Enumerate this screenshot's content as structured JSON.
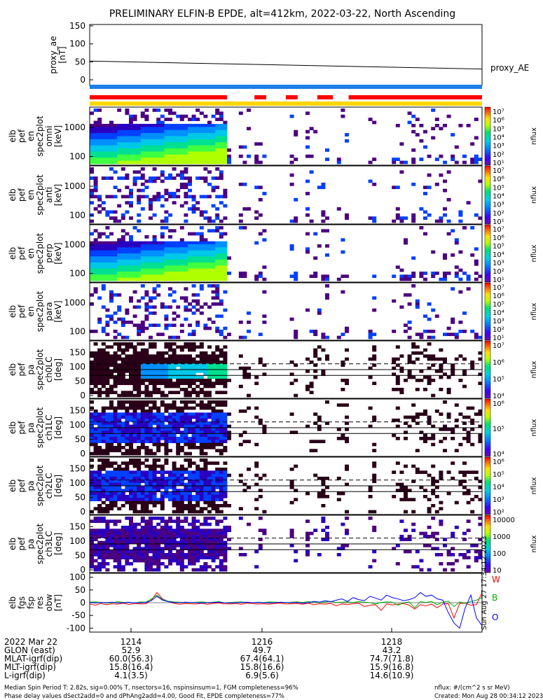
{
  "title": "PRELIMINARY ELFIN-B EPDE, alt=412km, 2022-03-22, North Ascending",
  "panels": [
    {
      "id": "proxy_ae",
      "ylabel": [
        "proxy_ae",
        "[nT]"
      ],
      "yticks": [
        "150",
        "100",
        "50",
        "0"
      ],
      "right_label": "proxy_AE"
    },
    {
      "id": "spec_omni",
      "ylabel": [
        "elb",
        "pef",
        "en",
        "spec2plot",
        "omni",
        "[keV]"
      ],
      "yticks": [
        "1000",
        "100"
      ],
      "cbar_ticks": [
        "10⁷",
        "10⁶",
        "10⁵",
        "10⁴",
        "10³",
        "10²",
        "10¹"
      ],
      "cbar_label": "nflux"
    },
    {
      "id": "spec_anti",
      "ylabel": [
        "elb",
        "pef",
        "en",
        "spec2plot",
        "anti",
        "[keV]"
      ],
      "yticks": [
        "1000",
        "100"
      ],
      "cbar_ticks": [
        "10⁷",
        "10⁶",
        "10⁵",
        "10⁴",
        "10³",
        "10²",
        "10¹"
      ],
      "cbar_label": "nflux"
    },
    {
      "id": "spec_perp",
      "ylabel": [
        "elb",
        "pef",
        "en",
        "spec2plot",
        "perp",
        "[keV]"
      ],
      "yticks": [
        "1000",
        "100"
      ],
      "cbar_ticks": [
        "10⁷",
        "10⁶",
        "10⁵",
        "10⁴",
        "10³",
        "10²",
        "10¹"
      ],
      "cbar_label": "nflux"
    },
    {
      "id": "spec_para",
      "ylabel": [
        "elb",
        "pef",
        "en",
        "spec2plot",
        "para",
        "[keV]"
      ],
      "yticks": [
        "1000",
        "100"
      ],
      "cbar_ticks": [
        "10⁷",
        "10⁶",
        "10⁵",
        "10⁴",
        "10³",
        "10²",
        "10¹"
      ],
      "cbar_label": "nflux"
    },
    {
      "id": "pa_ch0",
      "ylabel": [
        "elb",
        "pef",
        "pa",
        "spec2plot",
        "ch0LC",
        "[deg]"
      ],
      "yticks": [
        "150",
        "100",
        "50",
        "0"
      ],
      "cbar_ticks": [
        "10⁷",
        "10⁶",
        "10⁵",
        "10⁴"
      ],
      "cbar_label": "nflux"
    },
    {
      "id": "pa_ch1",
      "ylabel": [
        "elb",
        "pef",
        "pa",
        "spec2plot",
        "ch1LC",
        "[deg]"
      ],
      "yticks": [
        "150",
        "100",
        "50",
        "0"
      ],
      "cbar_ticks": [
        "10⁶",
        "10⁵",
        "10⁴"
      ],
      "cbar_label": "nflux"
    },
    {
      "id": "pa_ch2",
      "ylabel": [
        "elb",
        "pef",
        "pa",
        "spec2plot",
        "ch2LC",
        "[deg]"
      ],
      "yticks": [
        "150",
        "100",
        "50",
        "0"
      ],
      "cbar_ticks": [
        "10⁶",
        "10⁵",
        "10⁴",
        "10³",
        "10²"
      ],
      "cbar_label": "nflux"
    },
    {
      "id": "pa_ch3",
      "ylabel": [
        "elb",
        "pef",
        "pa",
        "spec2plot",
        "ch3LC",
        "[deg]"
      ],
      "yticks": [
        "150",
        "100",
        "50",
        "0"
      ],
      "cbar_ticks": [
        "10000",
        "1000",
        "100",
        "10"
      ],
      "cbar_label": "nflux"
    },
    {
      "id": "fgs",
      "ylabel": [
        "elb",
        "fgs",
        "fsp",
        "res",
        "obw",
        "[nT]"
      ],
      "yticks": [
        "100",
        "50",
        "0",
        "-50",
        "-100"
      ],
      "legend": [
        "W",
        "B",
        "O"
      ],
      "stamp": "Sun Aug 27 17:34:12 2023"
    }
  ],
  "chart_data": [
    {
      "type": "line",
      "panel": "proxy_ae",
      "x_minutes": [
        0,
        6.3
      ],
      "series": [
        {
          "name": "proxy_AE",
          "x": [
            0,
            6.3
          ],
          "values": [
            52,
            30
          ]
        }
      ],
      "ylim": [
        0,
        150
      ]
    },
    {
      "type": "heatmap",
      "panel": "spectra",
      "energy_keV_range": [
        50,
        7000
      ],
      "ylog": true,
      "cbar_range": [
        "10¹",
        "10⁷"
      ]
    },
    {
      "type": "heatmap",
      "panel": "pitch_angle",
      "ylim_deg": [
        0,
        180
      ],
      "loss_cone_lines_deg": [
        70,
        90,
        110
      ]
    },
    {
      "type": "line",
      "panel": "fgs",
      "ylim": [
        -110,
        110
      ],
      "series": [
        {
          "name": "W",
          "color": "#ff0000",
          "values": [
            -5,
            -10,
            -3,
            -8,
            -4,
            -6,
            -2,
            -7,
            -3,
            -5,
            -4,
            10,
            40,
            15,
            5,
            -2,
            -6,
            -3,
            -4,
            -5,
            -2,
            -6,
            -3,
            -1,
            -4,
            -5,
            -3,
            -6,
            -2,
            -3,
            -5,
            -4,
            -6,
            -3,
            -2,
            -5,
            -4,
            -3,
            -6,
            -2,
            -8,
            -4,
            -6,
            -3,
            -12,
            -5,
            -7,
            -4,
            -2,
            -15,
            -10,
            -8,
            -30,
            -5,
            -9,
            -6,
            -3,
            -10,
            -25,
            -8,
            -12,
            -6,
            -20,
            -5,
            -4,
            -60,
            -3,
            -2,
            -10,
            -8,
            40
          ]
        },
        {
          "name": "B",
          "color": "#00b000",
          "values": [
            2,
            3,
            1,
            -2,
            0,
            4,
            1,
            2,
            -1,
            3,
            2,
            15,
            30,
            12,
            6,
            3,
            2,
            1,
            0,
            2,
            3,
            1,
            2,
            4,
            0,
            1,
            2,
            3,
            1,
            0,
            2,
            1,
            3,
            2,
            1,
            0,
            2,
            3,
            1,
            4,
            2,
            0,
            3,
            5,
            1,
            2,
            3,
            1,
            4,
            2,
            0,
            -5,
            1,
            3,
            2,
            -10,
            0,
            3,
            -20,
            4,
            1,
            5,
            -8,
            2,
            6,
            -15,
            3,
            -2,
            5,
            10,
            20
          ]
        },
        {
          "name": "O",
          "color": "#0000ff",
          "values": [
            0,
            -1,
            1,
            0,
            2,
            -1,
            0,
            1,
            0,
            -1,
            1,
            8,
            25,
            10,
            4,
            1,
            0,
            2,
            1,
            0,
            -1,
            0,
            1,
            2,
            0,
            -1,
            0,
            1,
            2,
            0,
            1,
            0,
            -1,
            0,
            2,
            1,
            0,
            1,
            -2,
            0,
            5,
            2,
            8,
            4,
            10,
            15,
            5,
            20,
            12,
            8,
            25,
            18,
            10,
            30,
            20,
            15,
            8,
            12,
            20,
            40,
            25,
            30,
            15,
            10,
            -40,
            -80,
            -100,
            -20,
            30,
            -60,
            -90
          ]
        }
      ]
    }
  ],
  "axis": {
    "rows": [
      {
        "label": "2022 Mar 22",
        "values": [
          "1214",
          "1216",
          "1218"
        ]
      },
      {
        "label": "GLON (east)",
        "values": [
          "52.9",
          "49.7",
          "43.2"
        ]
      },
      {
        "label": "MLAT-igrf(dip)",
        "values": [
          "60.0(56.3)",
          "67.4(64.1)",
          "74.7(71.8)"
        ]
      },
      {
        "label": "MLT-igrf(dip)",
        "values": [
          "15.8(16.4)",
          "15.8(16.6)",
          "15.9(16.8)"
        ]
      },
      {
        "label": "L-igrf(dip)",
        "values": [
          "4.1(3.5)",
          "6.9(5.6)",
          "14.6(10.9)"
        ]
      }
    ]
  },
  "footer": {
    "line1": "Median Spin Period T: 2.82s, sig=0.00% T, nsectors=16, nspinsinsum=1, FGM completeness=96%",
    "line2": "Phase delay values dSect2add=0 and dPhAng2add=4.00, Good Fit, EPDE completeness=77%",
    "right1": "nflux: #/(cm^2 s sr MeV)",
    "right2": "Created: Mon Aug 28 00:34:12 2023"
  },
  "colors": {
    "red_bar": "#ff0000",
    "blue_bar": "#1e7ee6",
    "yellow_bar": "#ffd700"
  }
}
